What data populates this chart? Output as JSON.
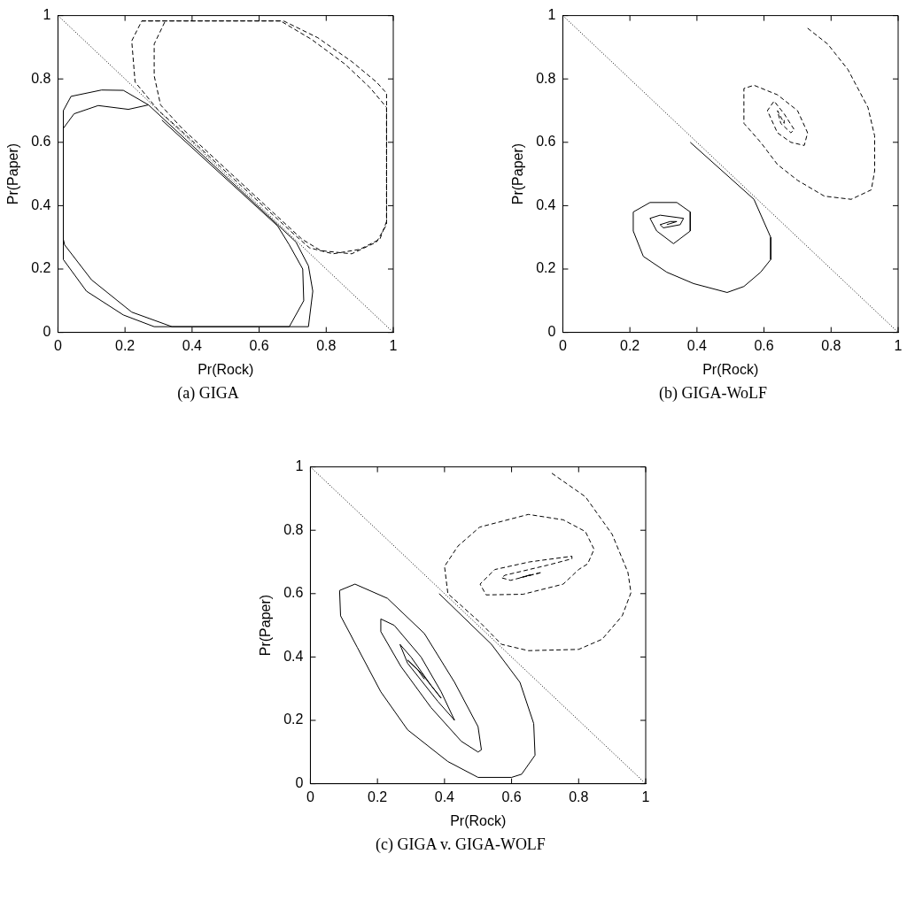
{
  "chart_data": [
    {
      "type": "line",
      "title": "(a) GIGA",
      "xlabel": "Pr(Rock)",
      "ylabel": "Pr(Paper)",
      "xlim": [
        0,
        1
      ],
      "ylim": [
        0,
        1
      ],
      "xticks": [
        0,
        0.2,
        0.4,
        0.6,
        0.8,
        1
      ],
      "yticks": [
        0,
        0.2,
        0.4,
        0.6,
        0.8,
        1
      ],
      "grid": false,
      "legend": false,
      "marker": "none",
      "series": [
        {
          "x": [
            0,
            1
          ],
          "values": [
            1,
            0
          ],
          "color": "#000000",
          "line_style": "dotted"
        },
        {
          "x": [
            0.31,
            0.655,
            0.69,
            0.73,
            0.733,
            0.69,
            0.34,
            0.22,
            0.1,
            0.02,
            0.016,
            0.016,
            0.048,
            0.12,
            0.21,
            0.27,
            0.655,
            0.71,
            0.747,
            0.76,
            0.747,
            0.287,
            0.195,
            0.085,
            0.016,
            0.016,
            0.039,
            0.13,
            0.195,
            0.27
          ],
          "values": [
            0.67,
            0.336,
            0.276,
            0.2,
            0.1,
            0.018,
            0.018,
            0.064,
            0.166,
            0.276,
            0.294,
            0.644,
            0.69,
            0.716,
            0.704,
            0.718,
            0.34,
            0.285,
            0.21,
            0.13,
            0.018,
            0.018,
            0.055,
            0.13,
            0.23,
            0.7,
            0.745,
            0.765,
            0.764,
            0.718
          ],
          "color": "#000000",
          "line_style": "solid"
        },
        {
          "x": [
            0.25,
            0.673,
            0.775,
            0.876,
            0.95,
            0.98,
            0.98,
            0.96,
            0.9,
            0.82,
            0.75,
            0.71,
            0.36,
            0.3,
            0.23,
            0.22,
            0.25,
            0.32,
            0.664,
            0.756,
            0.857,
            0.93,
            0.98,
            0.98,
            0.95,
            0.876,
            0.784,
            0.728,
            0.37,
            0.306,
            0.287,
            0.287,
            0.32
          ],
          "values": [
            0.983,
            0.983,
            0.93,
            0.855,
            0.79,
            0.755,
            0.35,
            0.294,
            0.262,
            0.248,
            0.267,
            0.304,
            0.644,
            0.7,
            0.79,
            0.92,
            0.983,
            0.983,
            0.983,
            0.925,
            0.846,
            0.773,
            0.71,
            0.34,
            0.285,
            0.248,
            0.258,
            0.294,
            0.644,
            0.718,
            0.81,
            0.91,
            0.983
          ],
          "color": "#000000",
          "line_style": "dashed"
        }
      ]
    },
    {
      "type": "line",
      "title": "(b) GIGA-WoLF",
      "xlabel": "Pr(Rock)",
      "ylabel": "Pr(Paper)",
      "xlim": [
        0,
        1
      ],
      "ylim": [
        0,
        1
      ],
      "xticks": [
        0,
        0.2,
        0.4,
        0.6,
        0.8,
        1
      ],
      "yticks": [
        0,
        0.2,
        0.4,
        0.6,
        0.8,
        1
      ],
      "grid": false,
      "legend": false,
      "marker": "none",
      "series": [
        {
          "x": [
            0,
            1
          ],
          "values": [
            1,
            0
          ],
          "color": "#000000",
          "line_style": "dotted"
        },
        {
          "x": [
            0.38,
            0.57,
            0.62,
            0.62,
            0.59,
            0.54,
            0.49,
            0.39,
            0.31,
            0.24,
            0.21,
            0.21,
            0.26,
            0.34,
            0.38,
            0.38,
            0.33,
            0.28,
            0.26,
            0.29,
            0.36,
            0.35,
            0.3,
            0.29,
            0.32,
            0.34,
            0.31
          ],
          "values": [
            0.6,
            0.42,
            0.3,
            0.23,
            0.19,
            0.145,
            0.126,
            0.154,
            0.19,
            0.24,
            0.32,
            0.38,
            0.41,
            0.41,
            0.38,
            0.32,
            0.28,
            0.32,
            0.36,
            0.37,
            0.36,
            0.34,
            0.33,
            0.34,
            0.35,
            0.35,
            0.34
          ],
          "color": "#000000",
          "line_style": "solid"
        },
        {
          "x": [
            0.73,
            0.79,
            0.85,
            0.91,
            0.93,
            0.93,
            0.92,
            0.86,
            0.78,
            0.7,
            0.64,
            0.59,
            0.54,
            0.54,
            0.57,
            0.64,
            0.7,
            0.73,
            0.72,
            0.68,
            0.64,
            0.61,
            0.63,
            0.66,
            0.69,
            0.68,
            0.65,
            0.64,
            0.66,
            0.66
          ],
          "values": [
            0.96,
            0.91,
            0.83,
            0.71,
            0.62,
            0.51,
            0.45,
            0.42,
            0.43,
            0.48,
            0.53,
            0.6,
            0.66,
            0.77,
            0.78,
            0.75,
            0.7,
            0.63,
            0.59,
            0.6,
            0.63,
            0.7,
            0.73,
            0.69,
            0.64,
            0.63,
            0.66,
            0.7,
            0.66,
            0.67
          ],
          "color": "#000000",
          "line_style": "dashed"
        }
      ]
    },
    {
      "type": "line",
      "title": "(c) GIGA v. GIGA-WOLF",
      "xlabel": "Pr(Rock)",
      "ylabel": "Pr(Paper)",
      "xlim": [
        0,
        1
      ],
      "ylim": [
        0,
        1
      ],
      "xticks": [
        0,
        0.2,
        0.4,
        0.6,
        0.8,
        1
      ],
      "yticks": [
        0,
        0.2,
        0.4,
        0.6,
        0.8,
        1
      ],
      "grid": false,
      "legend": false,
      "marker": "none",
      "series": [
        {
          "x": [
            0,
            1
          ],
          "values": [
            1,
            0
          ],
          "color": "#000000",
          "line_style": "dotted"
        },
        {
          "x": [
            0.384,
            0.54,
            0.625,
            0.666,
            0.67,
            0.63,
            0.6,
            0.5,
            0.41,
            0.29,
            0.21,
            0.14,
            0.09,
            0.087,
            0.133,
            0.23,
            0.34,
            0.43,
            0.5,
            0.51,
            0.5,
            0.45,
            0.36,
            0.27,
            0.21,
            0.21,
            0.25,
            0.33,
            0.39,
            0.43,
            0.38,
            0.29,
            0.267,
            0.3,
            0.36,
            0.39,
            0.33,
            0.29,
            0.32,
            0.34
          ],
          "values": [
            0.6,
            0.44,
            0.32,
            0.19,
            0.09,
            0.03,
            0.02,
            0.02,
            0.07,
            0.17,
            0.29,
            0.43,
            0.53,
            0.61,
            0.63,
            0.585,
            0.474,
            0.32,
            0.18,
            0.107,
            0.1,
            0.134,
            0.24,
            0.37,
            0.48,
            0.52,
            0.5,
            0.4,
            0.29,
            0.2,
            0.26,
            0.38,
            0.44,
            0.4,
            0.31,
            0.27,
            0.35,
            0.39,
            0.36,
            0.33
          ],
          "color": "#000000",
          "line_style": "solid"
        },
        {
          "x": [
            0.72,
            0.82,
            0.9,
            0.947,
            0.956,
            0.93,
            0.87,
            0.8,
            0.65,
            0.57,
            0.505,
            0.41,
            0.4,
            0.44,
            0.505,
            0.65,
            0.754,
            0.82,
            0.846,
            0.827,
            0.8,
            0.754,
            0.634,
            0.524,
            0.506,
            0.55,
            0.653,
            0.78,
            0.78,
            0.708,
            0.58,
            0.57,
            0.597,
            0.69,
            0.634,
            0.66,
            0.625
          ],
          "values": [
            0.98,
            0.906,
            0.787,
            0.667,
            0.603,
            0.53,
            0.456,
            0.424,
            0.42,
            0.44,
            0.51,
            0.6,
            0.686,
            0.75,
            0.81,
            0.85,
            0.833,
            0.796,
            0.74,
            0.694,
            0.676,
            0.63,
            0.598,
            0.596,
            0.63,
            0.676,
            0.7,
            0.718,
            0.71,
            0.69,
            0.658,
            0.65,
            0.642,
            0.667,
            0.653,
            0.66,
            0.65
          ],
          "color": "#000000",
          "line_style": "dashed"
        }
      ]
    }
  ]
}
